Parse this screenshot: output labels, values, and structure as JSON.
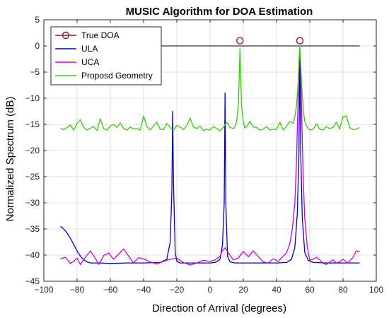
{
  "chart_data": {
    "type": "line",
    "title": "MUSIC Algorithm for DOA Estimation",
    "xlabel": "Direction of Arrival (degrees)",
    "ylabel": "Normalized Spectrum (dB)",
    "xlim": [
      -100,
      100
    ],
    "ylim": [
      -45,
      5
    ],
    "xticks": [
      -100,
      -80,
      -60,
      -40,
      -20,
      0,
      20,
      40,
      60,
      80,
      100
    ],
    "yticks": [
      5,
      0,
      -5,
      -10,
      -15,
      -20,
      -25,
      -30,
      -35,
      -40,
      -45
    ],
    "grid": true,
    "legend_position": "top-left",
    "reference_line_y": 0,
    "series": [
      {
        "name": "True DOA",
        "kind": "markers",
        "color": "#8b1a1a",
        "x": [
          18,
          54
        ],
        "y": [
          1,
          1
        ]
      },
      {
        "name": "ULA",
        "kind": "line",
        "color": "#0000cc",
        "x": [
          -90,
          -88,
          -86,
          -84,
          -82,
          -80,
          -78,
          -76,
          -74,
          -72,
          -70,
          -66,
          -60,
          -50,
          -40,
          -30,
          -26,
          -24,
          -23,
          -22.5,
          -22,
          -21,
          -20,
          -18,
          -14,
          -10,
          -5,
          0,
          3,
          6,
          7.5,
          8.5,
          9,
          9.5,
          10.5,
          12,
          15,
          20,
          30,
          40,
          46,
          49,
          51,
          52.5,
          53.5,
          54,
          54.5,
          55.5,
          57,
          59,
          62,
          70,
          80,
          90
        ],
        "y": [
          -34.5,
          -35,
          -35.8,
          -36.8,
          -38,
          -39.2,
          -40.2,
          -40.9,
          -41.3,
          -41.5,
          -41.5,
          -41.5,
          -41.6,
          -41.5,
          -41.5,
          -41.4,
          -40.8,
          -37.5,
          -28,
          -12.5,
          -26,
          -39.5,
          -41.2,
          -41.5,
          -41.5,
          -41.5,
          -41.5,
          -41.5,
          -41.4,
          -40.8,
          -38,
          -30,
          -9,
          -30,
          -40.2,
          -41.3,
          -41.5,
          -41.5,
          -41.5,
          -41.5,
          -41.4,
          -40.8,
          -38.5,
          -32,
          -20,
          -0.5,
          -20,
          -33,
          -39.5,
          -41,
          -41.4,
          -41.5,
          -41.5,
          -41.5
        ]
      },
      {
        "name": "UCA",
        "kind": "line",
        "color": "#cc00cc",
        "x": [
          -90,
          -87,
          -84,
          -82,
          -80,
          -78,
          -75,
          -72,
          -69,
          -67,
          -64,
          -61,
          -58,
          -55,
          -52,
          -49,
          -46,
          -43,
          -40,
          -36,
          -32,
          -28,
          -24,
          -20,
          -16,
          -12,
          -8,
          -4,
          0,
          3,
          6,
          7.5,
          9,
          11,
          14,
          17,
          20,
          23,
          26,
          29,
          32,
          35,
          38,
          41,
          44,
          46,
          48,
          49.5,
          51,
          52,
          52.8,
          53.5,
          54,
          54.5,
          55.2,
          56,
          57,
          58.5,
          60,
          62,
          64,
          66,
          68,
          70,
          72,
          74,
          76,
          78,
          80,
          83,
          86,
          88,
          90
        ],
        "y": [
          -40.7,
          -40.4,
          -41.6,
          -41.2,
          -40.6,
          -41.8,
          -40.4,
          -39.2,
          -40.6,
          -41.8,
          -40.1,
          -39.6,
          -40.8,
          -39.8,
          -38.8,
          -40.2,
          -41.5,
          -40.5,
          -40.7,
          -41.3,
          -41.7,
          -41.2,
          -40.8,
          -40.6,
          -41.4,
          -41.9,
          -41.5,
          -41,
          -41.2,
          -40.9,
          -40.2,
          -39.1,
          -38.6,
          -39.6,
          -40.9,
          -40.6,
          -39.3,
          -40.3,
          -39.2,
          -40.3,
          -41.3,
          -41.5,
          -40.7,
          -41.2,
          -40.2,
          -39.6,
          -37.8,
          -35,
          -30,
          -22,
          -12,
          -4,
          -0.3,
          -4,
          -14,
          -25,
          -33,
          -38.5,
          -41,
          -40.8,
          -40.4,
          -40.9,
          -41.6,
          -41.8,
          -41.3,
          -40.9,
          -41.5,
          -41.3,
          -40.8,
          -41.5,
          -40.4,
          -39.2,
          -39.3
        ]
      },
      {
        "name": "Proposd Geometry",
        "kind": "line",
        "color": "#33cc00",
        "x": [
          -90,
          -88,
          -86,
          -84,
          -82,
          -80,
          -78,
          -76,
          -74,
          -72,
          -70,
          -68,
          -66,
          -64,
          -62,
          -60,
          -58,
          -56,
          -54,
          -52,
          -50,
          -48,
          -46,
          -44,
          -42,
          -40,
          -38,
          -36,
          -34,
          -32,
          -30,
          -28,
          -26,
          -24,
          -22,
          -20,
          -18,
          -16,
          -14,
          -12,
          -10,
          -8,
          -6,
          -4,
          -2,
          0,
          2,
          4,
          6,
          8,
          10,
          12,
          14,
          15,
          16,
          17,
          17.5,
          18,
          18.5,
          19,
          20,
          21,
          22,
          24,
          26,
          28,
          30,
          32,
          34,
          36,
          38,
          40,
          42,
          44,
          46,
          48,
          50,
          51,
          52,
          53,
          53.5,
          54,
          54.5,
          55,
          56,
          57,
          58,
          60,
          62,
          64,
          66,
          68,
          70,
          72,
          74,
          76,
          78,
          80,
          82,
          84,
          86,
          88,
          90
        ],
        "y": [
          -15.8,
          -16,
          -15.6,
          -15.1,
          -16.1,
          -14.8,
          -14.1,
          -15.6,
          -16.1,
          -15.7,
          -15.4,
          -16.2,
          -13.9,
          -15.8,
          -16.1,
          -15.3,
          -15,
          -15.6,
          -14.7,
          -15.8,
          -16.1,
          -15.5,
          -15.9,
          -15.8,
          -16.1,
          -13.4,
          -15.4,
          -16.1,
          -15.3,
          -14.6,
          -15.9,
          -16,
          -14.8,
          -15.6,
          -16.1,
          -15.2,
          -15.5,
          -16,
          -15.2,
          -13.8,
          -15.5,
          -15.8,
          -15.3,
          -16.2,
          -15.9,
          -16.1,
          -15.4,
          -15.8,
          -16.2,
          -15.6,
          -14.6,
          -15.6,
          -15.8,
          -15.4,
          -14.5,
          -11.5,
          -6.5,
          -0.5,
          -6.5,
          -11.5,
          -14.6,
          -15.7,
          -15.4,
          -14.4,
          -15.5,
          -15.6,
          -16.1,
          -15.9,
          -15.4,
          -16.1,
          -15.9,
          -16,
          -14.6,
          -16.1,
          -15.4,
          -14.4,
          -14.8,
          -13.5,
          -11.5,
          -7,
          -3,
          -0.3,
          -3,
          -7,
          -12,
          -14.5,
          -15.3,
          -16.1,
          -15.9,
          -14.9,
          -15.9,
          -16.1,
          -15.4,
          -15.8,
          -15.6,
          -14.6,
          -15.9,
          -13.5,
          -13.4,
          -15.6,
          -16,
          -15.9,
          -15.6
        ]
      }
    ]
  }
}
